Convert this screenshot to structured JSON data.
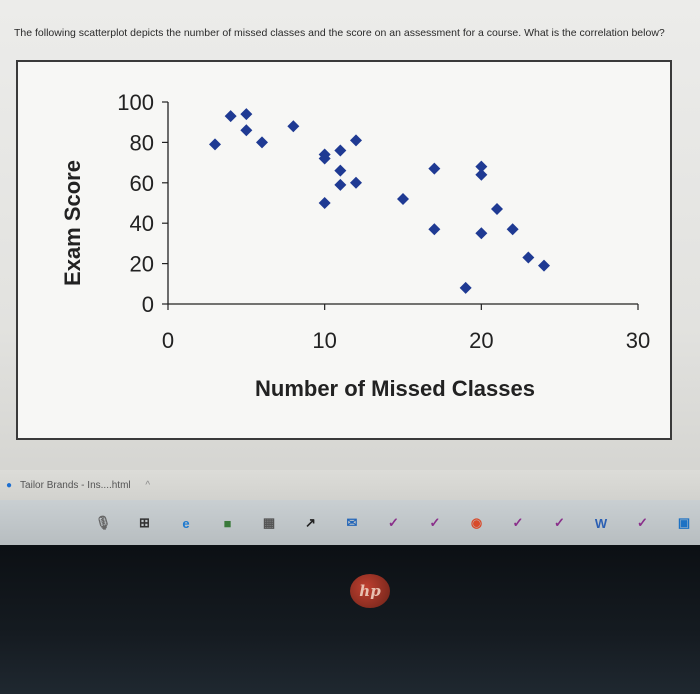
{
  "question": {
    "text": "The following scatterplot depicts the number of missed classes and the score on an assessment for a course. What is the correlation below?"
  },
  "chart_data": {
    "type": "scatter",
    "title": "",
    "xlabel": "Number of Missed Classes",
    "ylabel": "Exam Score",
    "xlim": [
      0,
      30
    ],
    "ylim": [
      0,
      100
    ],
    "x_ticks": [
      "0",
      "10",
      "20",
      "30"
    ],
    "y_ticks": [
      "0",
      "20",
      "40",
      "60",
      "80",
      "100"
    ],
    "grid": false,
    "legend": "none",
    "marker_color": "#1f3a93",
    "points": [
      {
        "x": 3,
        "y": 79
      },
      {
        "x": 4,
        "y": 93
      },
      {
        "x": 5,
        "y": 94
      },
      {
        "x": 5,
        "y": 86
      },
      {
        "x": 6,
        "y": 80
      },
      {
        "x": 8,
        "y": 88
      },
      {
        "x": 10,
        "y": 74
      },
      {
        "x": 10,
        "y": 72
      },
      {
        "x": 10,
        "y": 50
      },
      {
        "x": 11,
        "y": 76
      },
      {
        "x": 11,
        "y": 66
      },
      {
        "x": 11,
        "y": 59
      },
      {
        "x": 12,
        "y": 81
      },
      {
        "x": 12,
        "y": 60
      },
      {
        "x": 15,
        "y": 52
      },
      {
        "x": 17,
        "y": 67
      },
      {
        "x": 17,
        "y": 37
      },
      {
        "x": 19,
        "y": 8
      },
      {
        "x": 20,
        "y": 68
      },
      {
        "x": 20,
        "y": 64
      },
      {
        "x": 20,
        "y": 35
      },
      {
        "x": 21,
        "y": 47
      },
      {
        "x": 22,
        "y": 37
      },
      {
        "x": 23,
        "y": 23
      },
      {
        "x": 24,
        "y": 19
      }
    ]
  },
  "browser": {
    "download_label": "Tailor Brands - Ins....html",
    "download_chevron": "^"
  },
  "taskbar": {
    "icons": [
      {
        "name": "mic-icon",
        "glyph": "🎙",
        "color": "#666"
      },
      {
        "name": "taskview-icon",
        "glyph": "⊞",
        "color": "#333"
      },
      {
        "name": "edge-icon",
        "glyph": "e",
        "color": "#1e7ad0"
      },
      {
        "name": "files-icon",
        "glyph": "■",
        "color": "#3a7a3a"
      },
      {
        "name": "store-icon",
        "glyph": "▦",
        "color": "#555"
      },
      {
        "name": "arrow-icon",
        "glyph": "↗",
        "color": "#222"
      },
      {
        "name": "mail-icon",
        "glyph": "✉",
        "color": "#2466b8"
      },
      {
        "name": "app-icon-1",
        "glyph": "✓",
        "color": "#8a2f8a"
      },
      {
        "name": "app-icon-2",
        "glyph": "✓",
        "color": "#8a2f8a"
      },
      {
        "name": "chrome-icon",
        "glyph": "◉",
        "color": "#d84a2a"
      },
      {
        "name": "app-icon-3",
        "glyph": "✓",
        "color": "#8a2f8a"
      },
      {
        "name": "app-icon-4",
        "glyph": "✓",
        "color": "#8a2f8a"
      },
      {
        "name": "word-icon",
        "glyph": "W",
        "color": "#2b5fb3"
      },
      {
        "name": "app-icon-5",
        "glyph": "✓",
        "color": "#8a2f8a"
      },
      {
        "name": "photos-icon",
        "glyph": "▣",
        "color": "#1d72c4"
      }
    ]
  },
  "device": {
    "logo": "hp"
  }
}
